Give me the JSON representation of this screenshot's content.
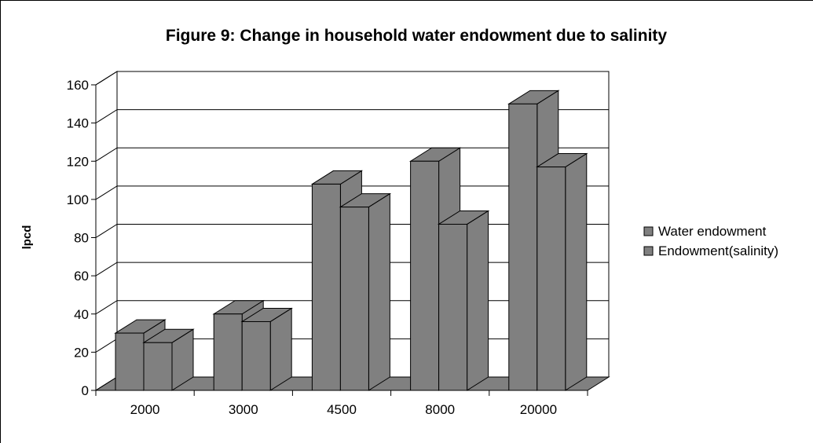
{
  "chart_data": {
    "type": "bar",
    "title": "Figure 9: Change in household water endowment due to salinity",
    "xlabel": "",
    "ylabel": "lpcd",
    "categories": [
      "2000",
      "3000",
      "4500",
      "8000",
      "20000"
    ],
    "series": [
      {
        "name": "Water endowment",
        "values": [
          30,
          40,
          108,
          120,
          150
        ]
      },
      {
        "name": "Endowment(salinity)",
        "values": [
          25,
          36,
          96,
          87,
          117
        ]
      }
    ],
    "ylim": [
      0,
      160
    ],
    "yticks": [
      0,
      20,
      40,
      60,
      80,
      100,
      120,
      140,
      160
    ],
    "grid": true,
    "legend_position": "right",
    "colors": {
      "bar": "#808080",
      "floor": "#808080",
      "gridline": "#000000",
      "background": "#ffffff"
    }
  }
}
